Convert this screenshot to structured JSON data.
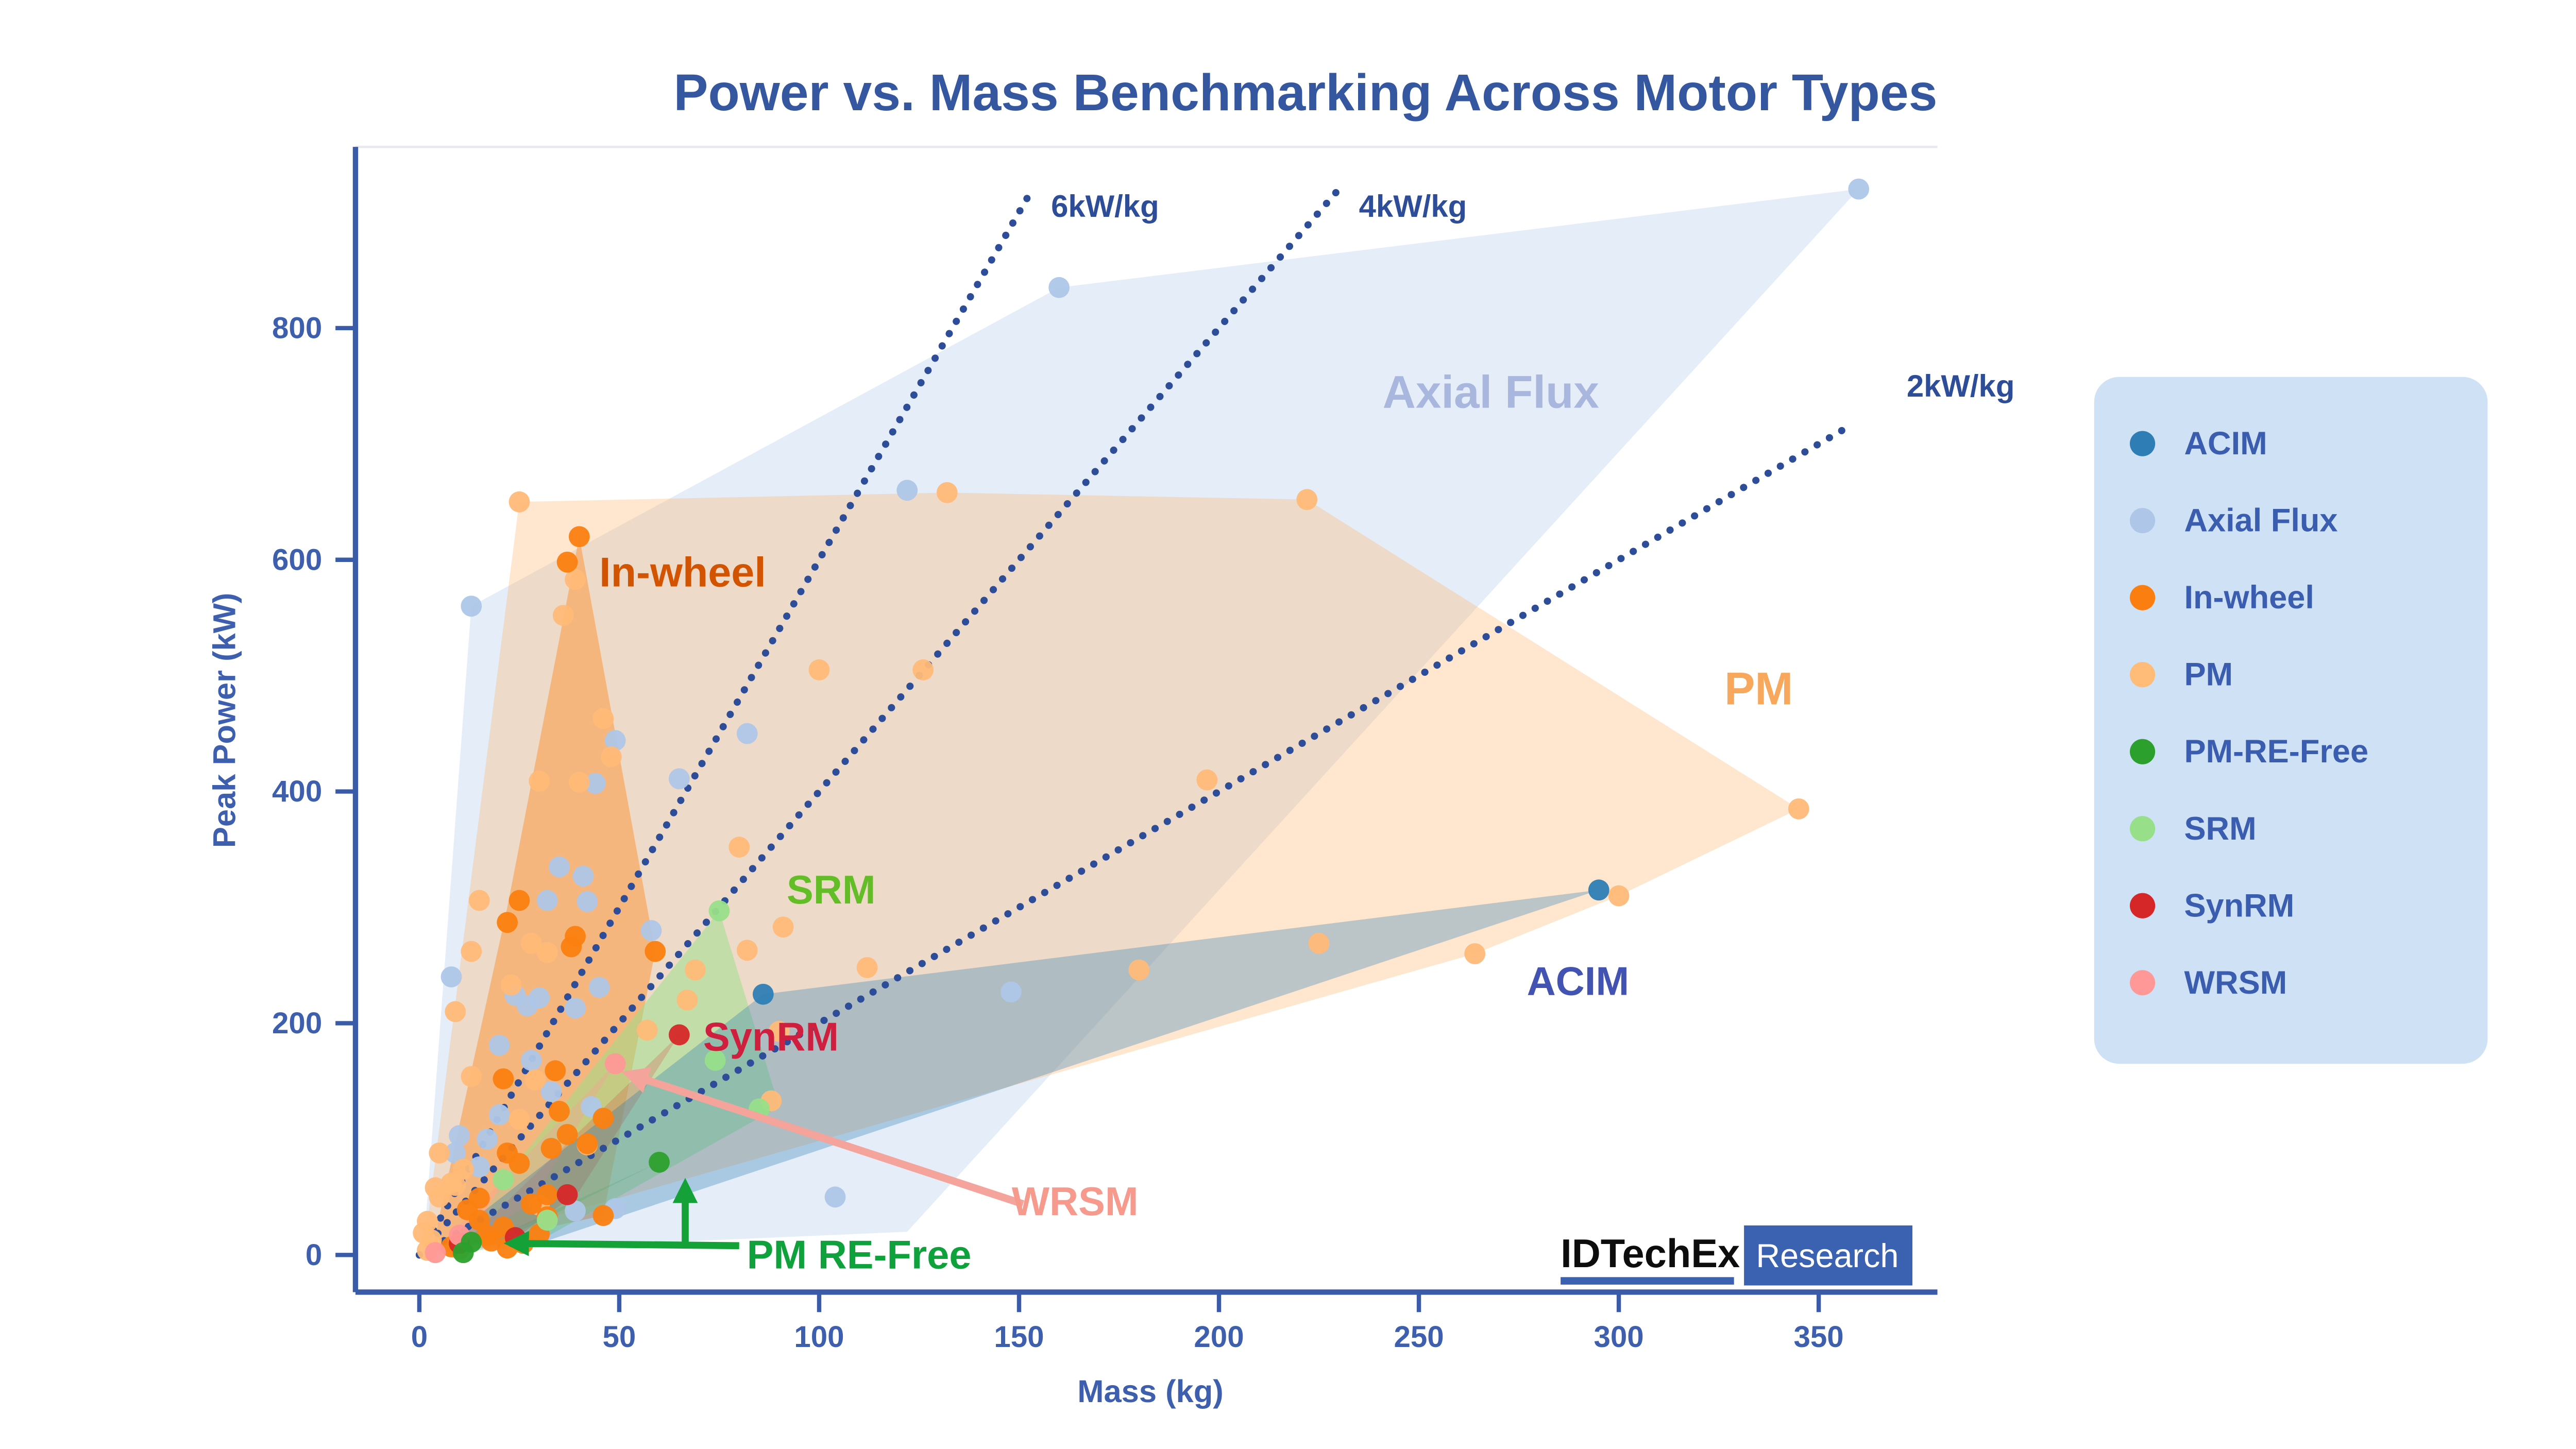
{
  "title": "Power vs. Mass Benchmarking Across Motor Types",
  "colors": {
    "title": "#35579f",
    "axis": "#3a5ba8",
    "tick_text": "#3d5fae",
    "ref_line": "#2e4d98",
    "legend_bg": "#cfe1f4",
    "legend_text": "#3a5db0",
    "top_spine": "#e9e9ee"
  },
  "chart_data": {
    "type": "scatter",
    "title": "Power vs. Mass Benchmarking Across Motor Types",
    "xlabel": "Mass (kg)",
    "ylabel": "Peak Power (kW)",
    "xlim": [
      -16,
      380
    ],
    "ylim": [
      -35,
      956
    ],
    "x_ticks": [
      0,
      50,
      100,
      150,
      200,
      250,
      300,
      350
    ],
    "y_ticks": [
      0,
      200,
      400,
      600,
      800
    ],
    "grid": false,
    "legend_position": "right-outside",
    "render_order": [
      "Axial Flux",
      "PM",
      "In-wheel",
      "SRM",
      "SynRM",
      "WRSM",
      "PM-RE-Free",
      "ACIM"
    ],
    "series": [
      {
        "name": "ACIM",
        "color": "#2e7eb5",
        "hull_color": "#1f77b4",
        "hull_opacity": 0.3,
        "hull": [
          [
            5,
            8
          ],
          [
            86,
            225
          ],
          [
            295,
            315
          ],
          [
            30,
            10
          ]
        ],
        "points": [
          [
            86,
            225
          ],
          [
            295,
            315
          ]
        ]
      },
      {
        "name": "Axial Flux",
        "color": "#aec7e8",
        "hull_color": "#aec7e8",
        "hull_opacity": 0.32,
        "hull": [
          [
            1,
            2
          ],
          [
            13,
            560
          ],
          [
            160,
            835
          ],
          [
            360,
            920
          ],
          [
            122,
            20
          ]
        ],
        "points": [
          [
            13,
            560
          ],
          [
            122,
            660
          ],
          [
            160,
            835
          ],
          [
            360,
            920
          ],
          [
            8,
            240
          ],
          [
            24,
            224
          ],
          [
            27,
            215
          ],
          [
            30,
            222
          ],
          [
            39,
            213
          ],
          [
            45,
            231
          ],
          [
            20,
            181
          ],
          [
            28,
            168
          ],
          [
            33,
            141
          ],
          [
            43,
            128
          ],
          [
            9,
            88
          ],
          [
            15,
            76
          ],
          [
            10,
            103
          ],
          [
            17,
            100
          ],
          [
            20,
            121
          ],
          [
            39,
            38
          ],
          [
            49,
            40
          ],
          [
            104,
            50
          ],
          [
            148,
            227
          ],
          [
            49,
            444
          ],
          [
            44,
            407
          ],
          [
            65,
            411
          ],
          [
            82,
            450
          ],
          [
            35,
            335
          ],
          [
            41,
            327
          ],
          [
            42,
            305
          ],
          [
            32,
            306
          ],
          [
            58,
            280
          ]
        ]
      },
      {
        "name": "In-wheel",
        "color": "#fb7f10",
        "hull_color": "#ff7f0e",
        "hull_opacity": 0.4,
        "hull": [
          [
            3,
            2
          ],
          [
            22,
            300
          ],
          [
            40,
            620
          ],
          [
            59,
            262
          ],
          [
            46,
            34
          ]
        ],
        "points": [
          [
            40,
            620
          ],
          [
            37,
            598
          ],
          [
            39,
            275
          ],
          [
            38,
            266
          ],
          [
            59,
            262
          ],
          [
            25,
            306
          ],
          [
            22,
            287
          ],
          [
            21,
            152
          ],
          [
            34,
            159
          ],
          [
            35,
            124
          ],
          [
            37,
            104
          ],
          [
            46,
            118
          ],
          [
            33,
            92
          ],
          [
            25,
            79
          ],
          [
            42,
            96
          ],
          [
            46,
            34
          ],
          [
            32,
            33
          ],
          [
            28,
            44
          ],
          [
            15,
            30
          ],
          [
            22,
            88
          ],
          [
            15,
            49
          ],
          [
            12,
            39
          ],
          [
            17,
            17
          ],
          [
            21,
            24
          ],
          [
            8,
            7
          ],
          [
            18,
            12
          ],
          [
            22,
            6
          ],
          [
            26,
            10
          ],
          [
            30,
            18
          ],
          [
            32,
            52
          ]
        ]
      },
      {
        "name": "PM",
        "color": "#ffbb78",
        "hull_color": "#ffbb78",
        "hull_opacity": 0.36,
        "hull": [
          [
            1,
            1
          ],
          [
            25,
            650
          ],
          [
            132,
            658
          ],
          [
            222,
            652
          ],
          [
            345,
            385
          ],
          [
            300,
            310
          ],
          [
            264,
            260
          ]
        ],
        "points": [
          [
            25,
            650
          ],
          [
            39,
            583
          ],
          [
            36,
            552
          ],
          [
            132,
            658
          ],
          [
            222,
            652
          ],
          [
            345,
            385
          ],
          [
            300,
            310
          ],
          [
            264,
            260
          ],
          [
            225,
            269
          ],
          [
            197,
            410
          ],
          [
            126,
            505
          ],
          [
            100,
            505
          ],
          [
            112,
            248
          ],
          [
            91,
            283
          ],
          [
            90,
            193
          ],
          [
            88,
            133
          ],
          [
            180,
            246
          ],
          [
            80,
            352
          ],
          [
            46,
            463
          ],
          [
            48,
            430
          ],
          [
            30,
            409
          ],
          [
            40,
            408
          ],
          [
            15,
            306
          ],
          [
            13,
            262
          ],
          [
            28,
            269
          ],
          [
            32,
            261
          ],
          [
            9,
            210
          ],
          [
            23,
            233
          ],
          [
            82,
            263
          ],
          [
            69,
            246
          ],
          [
            67,
            220
          ],
          [
            57,
            194
          ],
          [
            13,
            154
          ],
          [
            29,
            151
          ],
          [
            9,
            60
          ],
          [
            5,
            50
          ],
          [
            5,
            88
          ],
          [
            4,
            58
          ],
          [
            2,
            29
          ],
          [
            1,
            19
          ],
          [
            8,
            62
          ],
          [
            11,
            74
          ],
          [
            25,
            117
          ],
          [
            42,
            95
          ],
          [
            30,
            43
          ],
          [
            3,
            13
          ],
          [
            10,
            5
          ],
          [
            2,
            4
          ]
        ]
      },
      {
        "name": "PM-RE-Free",
        "color": "#2ca02c",
        "hull_color": "#2ca02c",
        "hull_opacity": 0.16,
        "hull": [
          [
            10,
            1
          ],
          [
            60,
            80
          ],
          [
            16,
            5
          ]
        ],
        "points": [
          [
            60,
            80
          ],
          [
            13,
            11
          ],
          [
            11,
            2
          ]
        ]
      },
      {
        "name": "SRM",
        "color": "#98df8a",
        "hull_color": "#98df8a",
        "hull_opacity": 0.5,
        "hull": [
          [
            12,
            8
          ],
          [
            21,
            65
          ],
          [
            75,
            297
          ],
          [
            90,
            128
          ],
          [
            30,
            12
          ]
        ],
        "points": [
          [
            75,
            297
          ],
          [
            74,
            168
          ],
          [
            85,
            126
          ],
          [
            21,
            65
          ],
          [
            32,
            30
          ]
        ]
      },
      {
        "name": "SynRM",
        "color": "#d62728",
        "hull_color": "#d62728",
        "hull_opacity": 0.2,
        "hull": [
          [
            9,
            3
          ],
          [
            65,
            190
          ],
          [
            40,
            55
          ],
          [
            22,
            9
          ]
        ],
        "points": [
          [
            65,
            190
          ],
          [
            37,
            52
          ],
          [
            24,
            15
          ],
          [
            10,
            10
          ]
        ]
      },
      {
        "name": "WRSM",
        "color": "#ff9896",
        "hull_color": "#ff9896",
        "hull_opacity": 0.28,
        "hull": [
          [
            3,
            1
          ],
          [
            49,
            165
          ],
          [
            28,
            45
          ],
          [
            9,
            3
          ]
        ],
        "points": [
          [
            49,
            165
          ],
          [
            10,
            17
          ],
          [
            4,
            2
          ]
        ]
      }
    ],
    "ref_lines": [
      {
        "label": "6kW/kg",
        "slope": 6,
        "end_kg": 153,
        "label_x": 158,
        "label_y": 905,
        "anchor": "start"
      },
      {
        "label": "4kW/kg",
        "slope": 4,
        "end_kg": 230,
        "label_x": 235,
        "label_y": 905,
        "anchor": "start"
      },
      {
        "label": "2kW/kg",
        "slope": 2,
        "end_kg": 357,
        "label_x": 372,
        "label_y": 750,
        "anchor": "start"
      }
    ],
    "region_labels": [
      {
        "text": "In-wheel",
        "x": 45,
        "y": 589,
        "color": "#d35400",
        "size": 25,
        "anchor": "start",
        "weight": 800
      },
      {
        "text": "Axial Flux",
        "x": 268,
        "y": 745,
        "color": "#a9b6de",
        "size": 27.5,
        "anchor": "middle",
        "weight": 800
      },
      {
        "text": "PM",
        "x": 335,
        "y": 489,
        "color": "#f8a85c",
        "size": 27.5,
        "anchor": "middle",
        "weight": 800
      },
      {
        "text": "SRM",
        "x": 103,
        "y": 315,
        "color": "#63bd27",
        "size": 24,
        "anchor": "middle",
        "weight": 800
      },
      {
        "text": "SynRM",
        "x": 71,
        "y": 188,
        "color": "#ce1f3e",
        "size": 24,
        "anchor": "start",
        "weight": 800
      },
      {
        "text": "ACIM",
        "x": 277,
        "y": 236,
        "color": "#4253b2",
        "size": 24,
        "anchor": "start",
        "weight": 800
      },
      {
        "text": "WRSM",
        "x": 164,
        "y": 46,
        "color": "#f79a8e",
        "size": 24,
        "anchor": "middle",
        "weight": 800
      },
      {
        "text": "PM RE-Free",
        "x": 110,
        "y": 0,
        "color": "#0fa23c",
        "size": 24,
        "anchor": "middle",
        "weight": 800
      }
    ],
    "arrows": [
      {
        "name": "wrsm-arrow",
        "color": "#f5a49b",
        "width": 4.5,
        "from": [
          151,
          44
        ],
        "to": [
          52.5,
          156
        ]
      },
      {
        "name": "pm-re-free-arrow-left",
        "color": "#14a138",
        "width": 4.2,
        "from": [
          80,
          8
        ],
        "to": [
          23,
          10
        ]
      },
      {
        "name": "pm-re-free-arrow-up",
        "color": "#14a138",
        "width": 4.2,
        "from": [
          66.5,
          8
        ],
        "to": [
          66.5,
          60
        ]
      }
    ]
  },
  "legend": {
    "items": [
      {
        "label": "ACIM",
        "color": "#2e7eb5"
      },
      {
        "label": "Axial Flux",
        "color": "#aec7e8"
      },
      {
        "label": "In-wheel",
        "color": "#fb7f10"
      },
      {
        "label": "PM",
        "color": "#ffbb78"
      },
      {
        "label": "PM-RE-Free",
        "color": "#2ca02c"
      },
      {
        "label": "SRM",
        "color": "#98df8a"
      },
      {
        "label": "SynRM",
        "color": "#d62728"
      },
      {
        "label": "WRSM",
        "color": "#ff9896"
      }
    ]
  },
  "logo": {
    "brand": "IDTechEx",
    "suffix": "Research"
  }
}
